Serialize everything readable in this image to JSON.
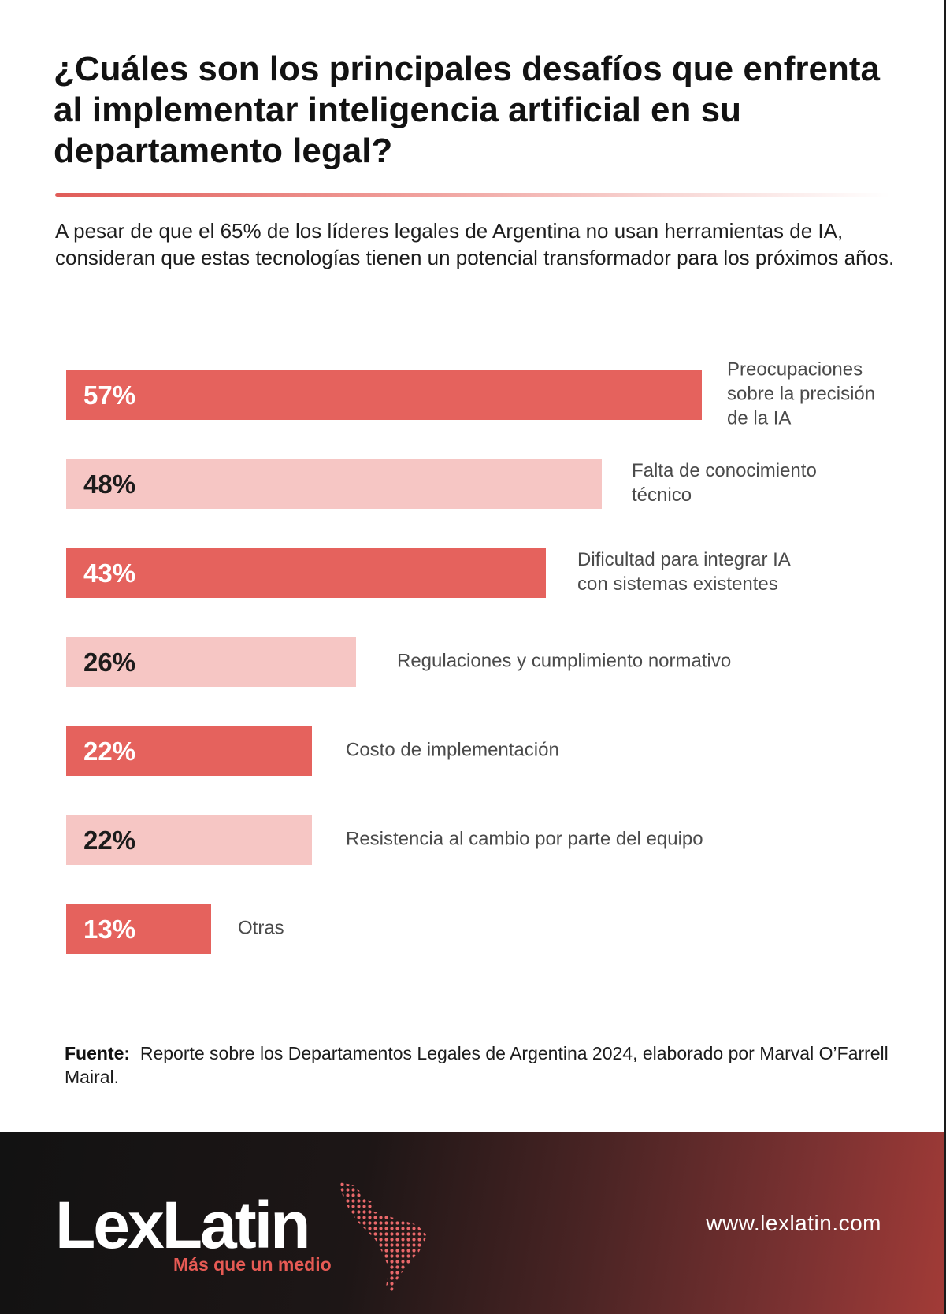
{
  "title": "¿Cuáles son los principales desafíos que enfrenta al implementar inteligencia artificial en su departamento legal?",
  "subtitle": "A pesar de que el 65% de los líderes legales de Argentina no usan herramientas de IA, consideran que estas tecnologías tienen un potencial transformador para los próximos años.",
  "chart_data": {
    "type": "bar",
    "orientation": "horizontal",
    "categories": [
      "Preocupaciones sobre la precisión de la IA",
      "Falta de conocimiento técnico",
      "Dificultad para integrar IA con sistemas existentes",
      "Regulaciones y cumplimiento normativo",
      "Costo de implementación",
      "Resistencia al cambio por parte del equipo",
      "Otras"
    ],
    "label_lines": [
      [
        "Preocupaciones",
        "sobre la precisión",
        "de la IA"
      ],
      [
        "Falta de conocimiento",
        "técnico"
      ],
      [
        "Dificultad para integrar IA",
        "con sistemas existentes"
      ],
      [
        "Regulaciones y cumplimiento normativo"
      ],
      [
        "Costo de implementación"
      ],
      [
        "Resistencia al cambio por parte del equipo"
      ],
      [
        "Otras"
      ]
    ],
    "values": [
      57,
      48,
      43,
      26,
      22,
      22,
      13
    ],
    "value_labels": [
      "57%",
      "48%",
      "43%",
      "26%",
      "22%",
      "22%",
      "13%"
    ],
    "unit": "%",
    "colors": {
      "dark": "#e5625d",
      "light": "#f6c6c4"
    },
    "color_pattern": [
      "dark",
      "light",
      "dark",
      "light",
      "dark",
      "light",
      "dark"
    ]
  },
  "source": {
    "prefix": "Fuente:",
    "text": "Reporte sobre los Departamentos Legales de Argentina 2024, elaborado por Marval O’Farrell Mairal."
  },
  "footer": {
    "logo_text": "LexLatin",
    "tagline": "Más que un medio",
    "website": "www.lexlatin.com",
    "map_icon": "latin-america-dotted-map-icon"
  }
}
